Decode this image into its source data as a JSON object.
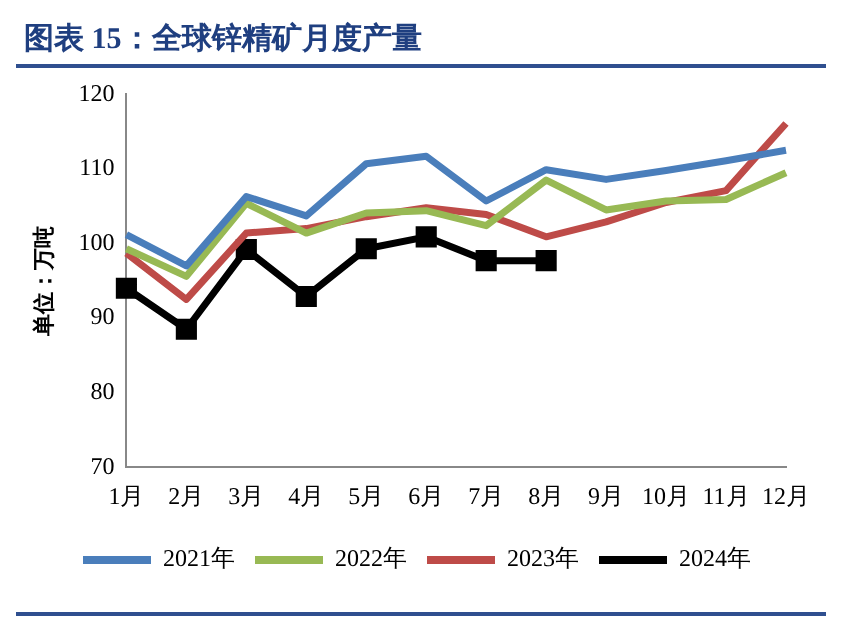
{
  "chart_data": {
    "type": "line",
    "title": "图表 15：全球锌精矿月度产量",
    "ylabel": "单位：万吨",
    "categories": [
      "1月",
      "2月",
      "3月",
      "4月",
      "5月",
      "6月",
      "7月",
      "8月",
      "9月",
      "10月",
      "11月",
      "12月"
    ],
    "ylim": [
      70,
      120
    ],
    "yticks": [
      70,
      80,
      90,
      100,
      110,
      120
    ],
    "grid": false,
    "legend": "bottom",
    "line_style": "solid",
    "series": [
      {
        "name": "2021年",
        "color": "#4a7ebb",
        "marker": "none",
        "values": [
          101.2,
          97.0,
          106.3,
          103.7,
          110.7,
          111.7,
          105.7,
          109.9,
          108.6,
          109.8,
          111.1,
          112.5
        ]
      },
      {
        "name": "2022年",
        "color": "#98b954",
        "marker": "none",
        "values": [
          99.3,
          95.6,
          105.4,
          101.4,
          104.1,
          104.4,
          102.4,
          108.5,
          104.5,
          105.7,
          105.9,
          109.5
        ]
      },
      {
        "name": "2023年",
        "color": "#be4b48",
        "marker": "none",
        "values": [
          98.7,
          92.5,
          101.4,
          102.0,
          103.6,
          104.8,
          103.9,
          100.9,
          102.9,
          105.5,
          107.1,
          116.1
        ]
      },
      {
        "name": "2024年",
        "color": "#000000",
        "marker": "square",
        "values": [
          94.0,
          88.5,
          99.2,
          92.9,
          99.3,
          100.9,
          97.7,
          97.7,
          null,
          null,
          null,
          null
        ]
      }
    ]
  }
}
